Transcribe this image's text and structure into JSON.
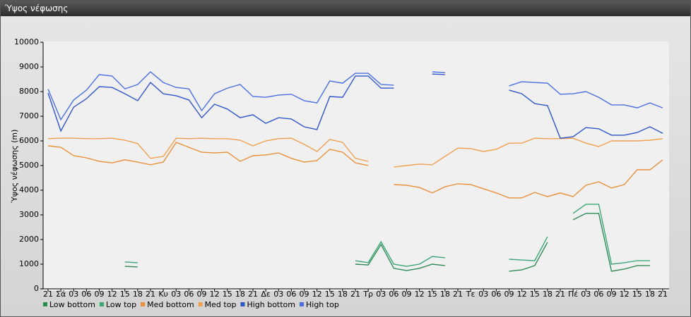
{
  "chart_data": {
    "type": "line",
    "title": "Ύψος νέφωσης",
    "ylabel": "Ύψος νέφωσης (m)",
    "categories": [
      "21",
      "Σά",
      "03",
      "06",
      "09",
      "12",
      "15",
      "18",
      "21",
      "Κυ",
      "03",
      "06",
      "09",
      "12",
      "15",
      "18",
      "21",
      "Δε",
      "03",
      "06",
      "09",
      "12",
      "15",
      "18",
      "21",
      "Τρ",
      "03",
      "06",
      "09",
      "12",
      "15",
      "18",
      "21",
      "Τε",
      "03",
      "06",
      "09",
      "12",
      "15",
      "18",
      "21",
      "Πέ",
      "03",
      "06",
      "09",
      "12",
      "15",
      "18",
      "21"
    ],
    "ylim": [
      0,
      10000
    ],
    "yticks": [
      0,
      1000,
      2000,
      3000,
      4000,
      5000,
      6000,
      7000,
      8000,
      9000,
      10000
    ],
    "grid": false,
    "legend": "bottom-left",
    "series": [
      {
        "name": "Low bottom",
        "color": "#2e8b57",
        "values": [
          null,
          null,
          null,
          null,
          null,
          null,
          910,
          890,
          null,
          null,
          null,
          null,
          null,
          null,
          null,
          null,
          null,
          null,
          null,
          null,
          null,
          null,
          null,
          null,
          1000,
          970,
          1800,
          830,
          740,
          830,
          1000,
          940,
          null,
          null,
          null,
          null,
          710,
          770,
          940,
          1890,
          null,
          2800,
          3060,
          3060,
          710,
          800,
          940,
          940,
          null
        ]
      },
      {
        "name": "Low top",
        "color": "#3aa876",
        "values": [
          null,
          null,
          null,
          null,
          null,
          null,
          1090,
          1060,
          null,
          null,
          null,
          null,
          null,
          null,
          null,
          null,
          null,
          null,
          null,
          null,
          null,
          null,
          null,
          null,
          1140,
          1060,
          1910,
          1000,
          910,
          1000,
          1310,
          1260,
          null,
          null,
          null,
          null,
          1200,
          1170,
          1140,
          2110,
          null,
          3060,
          3430,
          3430,
          1000,
          1060,
          1140,
          1140,
          null
        ]
      },
      {
        "name": "Med bottom",
        "color": "#e8913a",
        "values": [
          5800,
          5740,
          5400,
          5310,
          5170,
          5110,
          5230,
          5140,
          5030,
          5140,
          5940,
          5740,
          5540,
          5510,
          5540,
          5170,
          5400,
          5430,
          5510,
          5290,
          5140,
          5200,
          5660,
          5540,
          5110,
          5000,
          null,
          4230,
          4200,
          4110,
          3890,
          4140,
          4260,
          4230,
          4060,
          3890,
          3690,
          3690,
          3910,
          3740,
          3890,
          3740,
          4200,
          4340,
          4090,
          4230,
          4830,
          4830,
          5230
        ]
      },
      {
        "name": "Med top",
        "color": "#f0a050",
        "values": [
          6090,
          6110,
          6110,
          6090,
          6090,
          6110,
          6030,
          5890,
          5290,
          5370,
          6110,
          6090,
          6110,
          6090,
          6090,
          6030,
          5800,
          6000,
          6090,
          6110,
          5860,
          5570,
          6060,
          5940,
          5290,
          5170,
          null,
          4940,
          5000,
          5060,
          5030,
          5370,
          5710,
          5690,
          5570,
          5660,
          5910,
          5910,
          6110,
          6090,
          6090,
          6110,
          5910,
          5770,
          6000,
          6000,
          6000,
          6030,
          6090
        ]
      },
      {
        "name": "High bottom",
        "color": "#2f55c8",
        "values": [
          7940,
          6400,
          7370,
          7710,
          8200,
          8170,
          7910,
          7630,
          8370,
          7910,
          7830,
          7660,
          6940,
          7490,
          7290,
          6940,
          7060,
          6710,
          6940,
          6890,
          6570,
          6460,
          7800,
          7770,
          8630,
          8630,
          8140,
          8140,
          null,
          null,
          8710,
          8690,
          null,
          null,
          null,
          null,
          8060,
          7910,
          7510,
          7430,
          6110,
          6170,
          6540,
          6490,
          6230,
          6230,
          6340,
          6570,
          6310
        ]
      },
      {
        "name": "High top",
        "color": "#4a6fe0",
        "values": [
          8100,
          6860,
          7660,
          8060,
          8690,
          8630,
          8110,
          8290,
          8800,
          8370,
          8170,
          8110,
          7230,
          7910,
          8140,
          8290,
          7800,
          7770,
          7860,
          7890,
          7630,
          7540,
          8430,
          8340,
          8740,
          8740,
          8290,
          8260,
          null,
          null,
          8800,
          8770,
          null,
          null,
          null,
          null,
          8230,
          8400,
          8370,
          8340,
          7890,
          7910,
          8000,
          7770,
          7460,
          7460,
          7340,
          7540,
          7340
        ]
      }
    ]
  }
}
